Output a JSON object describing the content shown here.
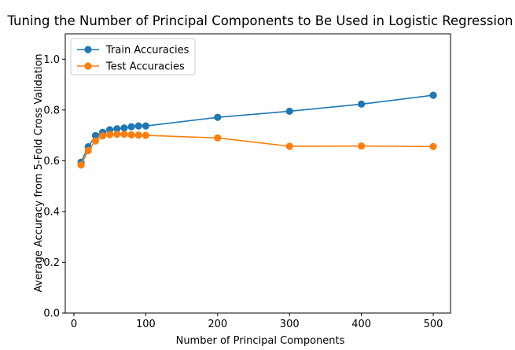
{
  "chart_data": {
    "type": "line",
    "title": "Tuning the Number of Principal Components to Be Used in Logistic Regression",
    "xlabel": "Number of Principal Components",
    "ylabel": "Average Accuracy from 5-Fold Cross Validation",
    "xlim": [
      -12,
      524
    ],
    "ylim": [
      0.0,
      1.1
    ],
    "xticks": [
      0,
      100,
      200,
      300,
      400,
      500
    ],
    "yticks": [
      0.0,
      0.2,
      0.4,
      0.6,
      0.8,
      1.0
    ],
    "xtick_labels": [
      "0",
      "100",
      "200",
      "300",
      "400",
      "500"
    ],
    "ytick_labels": [
      "0.0",
      "0.2",
      "0.4",
      "0.6",
      "0.8",
      "1.0"
    ],
    "grid": false,
    "legend_position": "upper-left",
    "x": [
      10,
      20,
      30,
      40,
      50,
      60,
      70,
      80,
      90,
      100,
      200,
      300,
      400,
      500
    ],
    "series": [
      {
        "name": "Train Accuracies",
        "color": "#1f77b4",
        "values": [
          0.594,
          0.655,
          0.699,
          0.712,
          0.722,
          0.726,
          0.729,
          0.734,
          0.737,
          0.737,
          0.771,
          0.795,
          0.823,
          0.858
        ]
      },
      {
        "name": "Test Accuracies",
        "color": "#ff7f0e",
        "values": [
          0.583,
          0.64,
          0.678,
          0.698,
          0.703,
          0.704,
          0.704,
          0.702,
          0.701,
          0.7,
          0.69,
          0.657,
          0.658,
          0.656
        ]
      }
    ]
  }
}
